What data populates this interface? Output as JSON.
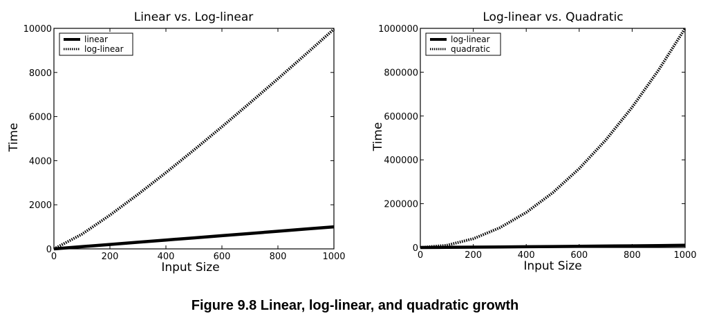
{
  "figure": {
    "caption": "Figure 9.8 Linear, log-linear, and quadratic growth"
  },
  "chart_data": [
    {
      "type": "line",
      "title": "Linear vs. Log-linear",
      "xlabel": "Input Size",
      "ylabel": "Time",
      "xlim": [
        0,
        1000
      ],
      "ylim": [
        0,
        10000
      ],
      "xticks": [
        0,
        200,
        400,
        600,
        800,
        1000
      ],
      "yticks": [
        0,
        2000,
        4000,
        6000,
        8000,
        10000
      ],
      "grid": false,
      "legend_position": "top-left",
      "series": [
        {
          "name": "linear",
          "style": "solid",
          "color": "#000000",
          "x": [
            0,
            100,
            200,
            300,
            400,
            500,
            600,
            700,
            800,
            900,
            1000
          ],
          "y": [
            0,
            100,
            200,
            300,
            400,
            500,
            600,
            700,
            800,
            900,
            1000
          ]
        },
        {
          "name": "log-linear",
          "style": "dotted",
          "color": "#000000",
          "x": [
            0,
            100,
            200,
            300,
            400,
            500,
            600,
            700,
            800,
            900,
            1000
          ],
          "y": [
            0,
            664,
            1529,
            2469,
            3458,
            4483,
            5537,
            6616,
            7715,
            8832,
            9966
          ]
        }
      ]
    },
    {
      "type": "line",
      "title": "Log-linear vs. Quadratic",
      "xlabel": "Input Size",
      "ylabel": "Time",
      "xlim": [
        0,
        1000
      ],
      "ylim": [
        0,
        1000000
      ],
      "xticks": [
        0,
        200,
        400,
        600,
        800,
        1000
      ],
      "yticks": [
        0,
        200000,
        400000,
        600000,
        800000,
        1000000
      ],
      "grid": false,
      "legend_position": "top-left",
      "series": [
        {
          "name": "log-linear",
          "style": "solid",
          "color": "#000000",
          "x": [
            0,
            100,
            200,
            300,
            400,
            500,
            600,
            700,
            800,
            900,
            1000
          ],
          "y": [
            0,
            664,
            1529,
            2469,
            3458,
            4483,
            5537,
            6616,
            7715,
            8832,
            9966
          ]
        },
        {
          "name": "quadratic",
          "style": "dotted",
          "color": "#000000",
          "x": [
            0,
            100,
            200,
            300,
            400,
            500,
            600,
            700,
            800,
            900,
            1000
          ],
          "y": [
            0,
            10000,
            40000,
            90000,
            160000,
            250000,
            360000,
            490000,
            640000,
            810000,
            1000000
          ]
        }
      ]
    }
  ]
}
